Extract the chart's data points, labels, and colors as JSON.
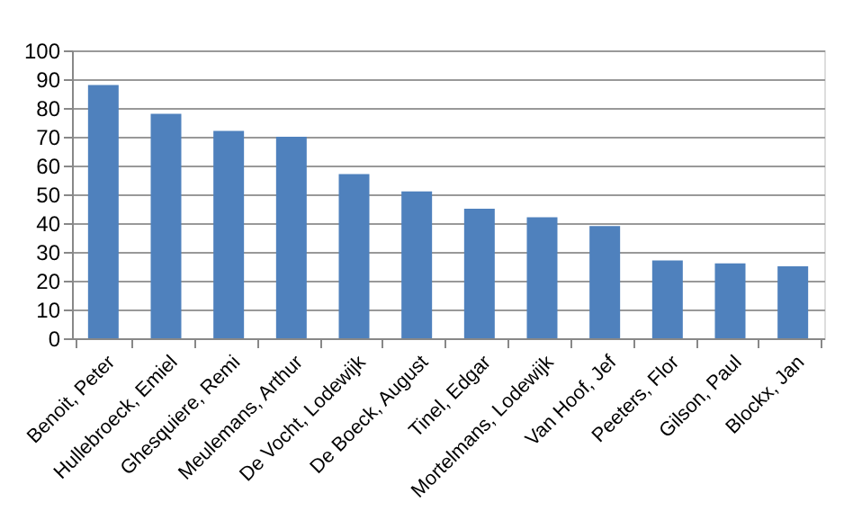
{
  "chart_data": {
    "type": "bar",
    "categories": [
      "Benoit, Peter",
      "Hullebroeck, Emiel",
      "Ghesquiere, Remi",
      "Meulemans, Arthur",
      "De Vocht, Lodewijk",
      "De Boeck, August",
      "Tinel, Edgar",
      "Mortelmans, Lodewijk",
      "Van Hoof, Jef",
      "Peeters, Flor",
      "Gilson, Paul",
      "Blockx, Jan"
    ],
    "values": [
      88,
      78,
      72,
      70,
      57,
      51,
      45,
      42,
      39,
      27,
      26,
      25
    ],
    "color": "#4f81bd",
    "ylim": [
      0,
      100
    ],
    "yticks": [
      0,
      10,
      20,
      30,
      40,
      50,
      60,
      70,
      80,
      90,
      100
    ],
    "grid": "y"
  }
}
